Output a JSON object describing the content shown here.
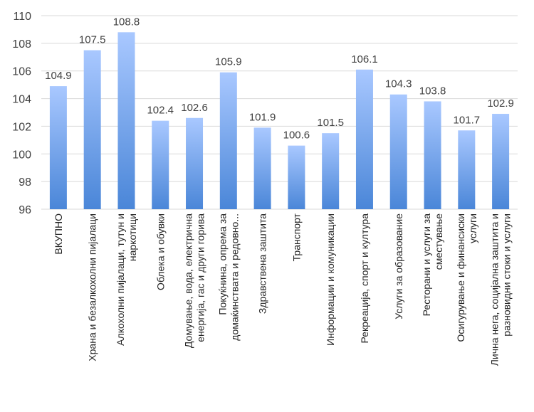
{
  "chart_data": {
    "type": "bar",
    "title": "",
    "xlabel": "",
    "ylabel": "",
    "ylim": [
      96,
      110
    ],
    "yticks": [
      96,
      98,
      100,
      102,
      104,
      106,
      108,
      110
    ],
    "grid": true,
    "legend": "none",
    "bar_color_top": "#a9c8ff",
    "bar_color_bottom": "#4a86d8",
    "categories": [
      [
        "ВКУПНО"
      ],
      [
        "Храна и безалкохолни пијалаци"
      ],
      [
        "Алкохолни пијалаци, тутун и",
        "наркотици"
      ],
      [
        "Облека и обувки"
      ],
      [
        "Домување, вода, електрична",
        "енергија, гас и други горива"
      ],
      [
        "Покуќнина, опрема за",
        "домаќинствата и редовно..."
      ],
      [
        "Здравствена заштита"
      ],
      [
        "Транспорт"
      ],
      [
        "Информации и комуникации"
      ],
      [
        "Рекреација, спорт и култура"
      ],
      [
        "Услуги за образование"
      ],
      [
        "Ресторани и услуги за",
        "сместување"
      ],
      [
        "Осигурување и финансиски",
        "услуги"
      ],
      [
        "Лична нега, социјална заштита и",
        "разновидни стоки и услуги"
      ]
    ],
    "values": [
      104.9,
      107.5,
      108.8,
      102.4,
      102.6,
      105.9,
      101.9,
      100.6,
      101.5,
      106.1,
      104.3,
      103.8,
      101.7,
      102.9
    ],
    "value_labels": [
      "104.9",
      "107.5",
      "108.8",
      "102.4",
      "102.6",
      "105.9",
      "101.9",
      "100.6",
      "101.5",
      "106.1",
      "104.3",
      "103.8",
      "101.7",
      "102.9"
    ]
  }
}
